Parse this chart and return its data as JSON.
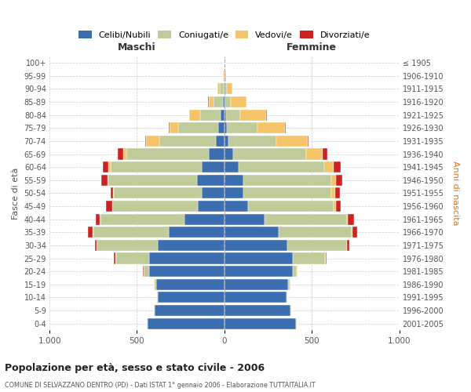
{
  "age_groups": [
    "0-4",
    "5-9",
    "10-14",
    "15-19",
    "20-24",
    "25-29",
    "30-34",
    "35-39",
    "40-44",
    "45-49",
    "50-54",
    "55-59",
    "60-64",
    "65-69",
    "70-74",
    "75-79",
    "80-84",
    "85-89",
    "90-94",
    "95-99",
    "100+"
  ],
  "birth_years": [
    "2001-2005",
    "1996-2000",
    "1991-1995",
    "1986-1990",
    "1981-1985",
    "1976-1980",
    "1971-1975",
    "1966-1970",
    "1961-1965",
    "1956-1960",
    "1951-1955",
    "1946-1950",
    "1941-1945",
    "1936-1940",
    "1931-1935",
    "1926-1930",
    "1921-1925",
    "1916-1920",
    "1911-1915",
    "1906-1910",
    "≤ 1905"
  ],
  "male_celibi": [
    440,
    400,
    380,
    390,
    430,
    430,
    380,
    320,
    230,
    150,
    130,
    155,
    130,
    90,
    50,
    35,
    20,
    10,
    5,
    2,
    0
  ],
  "male_coniugati": [
    2,
    3,
    5,
    10,
    30,
    190,
    350,
    430,
    480,
    490,
    500,
    510,
    520,
    470,
    320,
    230,
    120,
    50,
    20,
    3,
    0
  ],
  "male_vedovi": [
    0,
    0,
    0,
    1,
    2,
    5,
    2,
    2,
    2,
    3,
    5,
    5,
    15,
    20,
    80,
    50,
    60,
    30,
    15,
    3,
    0
  ],
  "male_divorziati": [
    0,
    0,
    0,
    2,
    3,
    5,
    10,
    30,
    25,
    35,
    15,
    35,
    30,
    30,
    3,
    3,
    3,
    2,
    0,
    0,
    0
  ],
  "female_celibi": [
    410,
    380,
    355,
    365,
    390,
    390,
    360,
    310,
    230,
    135,
    110,
    110,
    80,
    50,
    25,
    15,
    10,
    5,
    3,
    1,
    0
  ],
  "female_coniugati": [
    2,
    3,
    5,
    10,
    25,
    185,
    340,
    420,
    470,
    490,
    500,
    500,
    490,
    420,
    270,
    175,
    80,
    30,
    10,
    2,
    0
  ],
  "female_vedovi": [
    0,
    0,
    0,
    1,
    2,
    5,
    3,
    3,
    5,
    15,
    25,
    30,
    55,
    90,
    180,
    155,
    150,
    90,
    35,
    8,
    2
  ],
  "female_divorziati": [
    0,
    0,
    0,
    2,
    2,
    5,
    10,
    25,
    35,
    25,
    25,
    35,
    40,
    30,
    5,
    5,
    5,
    2,
    0,
    0,
    0
  ],
  "colors": {
    "celibi": "#3C6EAF",
    "coniugati": "#BFCC99",
    "vedovi": "#F5C469",
    "divorziati": "#CC2222"
  },
  "title_main": "Popolazione per età, sesso e stato civile - 2006",
  "title_sub": "COMUNE DI SELVAZZANO DENTRO (PD) - Dati ISTAT 1° gennaio 2006 - Elaborazione TUTTAITALIA.IT",
  "xlabel_left": "Maschi",
  "xlabel_right": "Femmine",
  "ylabel_left": "Fasce di età",
  "ylabel_right": "Anni di nascita",
  "xlim": 1000,
  "bg_color": "#ffffff",
  "grid_color": "#cccccc"
}
